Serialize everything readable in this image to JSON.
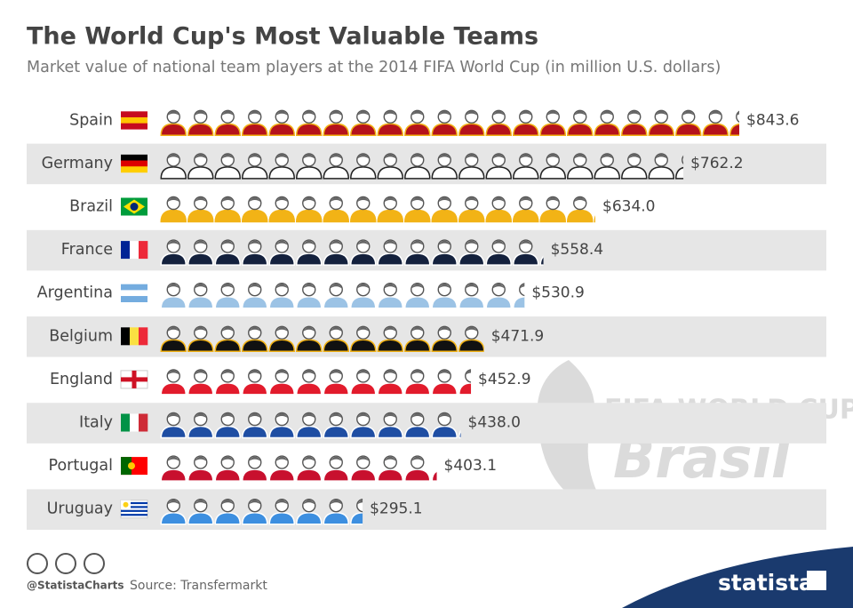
{
  "chart_data": {
    "type": "pictogram",
    "title": "The World Cup's Most Valuable Teams",
    "subtitle": "Market value of national team players at the 2014 FIFA World Cup (in million U.S. dollars)",
    "categories": [
      "Spain",
      "Germany",
      "Brazil",
      "France",
      "Argentina",
      "Belgium",
      "England",
      "Italy",
      "Portugal",
      "Uruguay"
    ],
    "values": [
      843.6,
      762.2,
      634.0,
      558.4,
      530.9,
      471.9,
      452.9,
      438.0,
      403.1,
      295.1
    ],
    "value_labels": [
      "$843.6",
      "$762.2",
      "$634.0",
      "$558.4",
      "$530.9",
      "$471.9",
      "$452.9",
      "$438.0",
      "$403.1",
      "$295.1"
    ],
    "colors": [
      "#b5121b",
      "#ffffff",
      "#f2b316",
      "#14213d",
      "#9cc3e5",
      "#111111",
      "#e21b2c",
      "#1f4ea3",
      "#c8102e",
      "#3d8fe0"
    ],
    "watermark": [
      "FIFA WORLD CUP",
      "Brasil"
    ],
    "footer": {
      "handle": "@StatistaCharts",
      "source": "Source: Transfermarkt",
      "brand": "statista"
    }
  }
}
